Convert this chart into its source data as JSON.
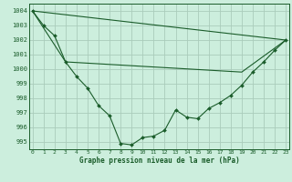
{
  "title": "Graphe pression niveau de la mer (hPa)",
  "background_color": "#cceedd",
  "grid_color": "#aaccbb",
  "line_color": "#1a5c2a",
  "text_color": "#1a5c2a",
  "ylim": [
    994.5,
    1004.5
  ],
  "xlim": [
    -0.3,
    23.3
  ],
  "yticks": [
    995,
    996,
    997,
    998,
    999,
    1000,
    1001,
    1002,
    1003,
    1004
  ],
  "xticks": [
    0,
    1,
    2,
    3,
    4,
    5,
    6,
    7,
    8,
    9,
    10,
    11,
    12,
    13,
    14,
    15,
    16,
    17,
    18,
    19,
    20,
    21,
    22,
    23
  ],
  "main_line": {
    "x": [
      0,
      1,
      2,
      3,
      4,
      5,
      6,
      7,
      8,
      9,
      10,
      11,
      12,
      13,
      14,
      15,
      16,
      17,
      18,
      19,
      20,
      21,
      22,
      23
    ],
    "y": [
      1004.0,
      1003.0,
      1002.3,
      1000.5,
      999.5,
      998.7,
      997.5,
      996.8,
      994.9,
      994.8,
      995.3,
      995.4,
      995.8,
      997.2,
      996.7,
      996.6,
      997.3,
      997.7,
      998.2,
      998.9,
      999.8,
      1000.5,
      1001.3,
      1002.0
    ]
  },
  "upper_line": {
    "x": [
      0,
      23
    ],
    "y": [
      1004.0,
      1002.0
    ]
  },
  "lower_line": {
    "x": [
      0,
      3,
      19,
      23
    ],
    "y": [
      1004.0,
      1000.5,
      999.8,
      1002.0
    ]
  }
}
